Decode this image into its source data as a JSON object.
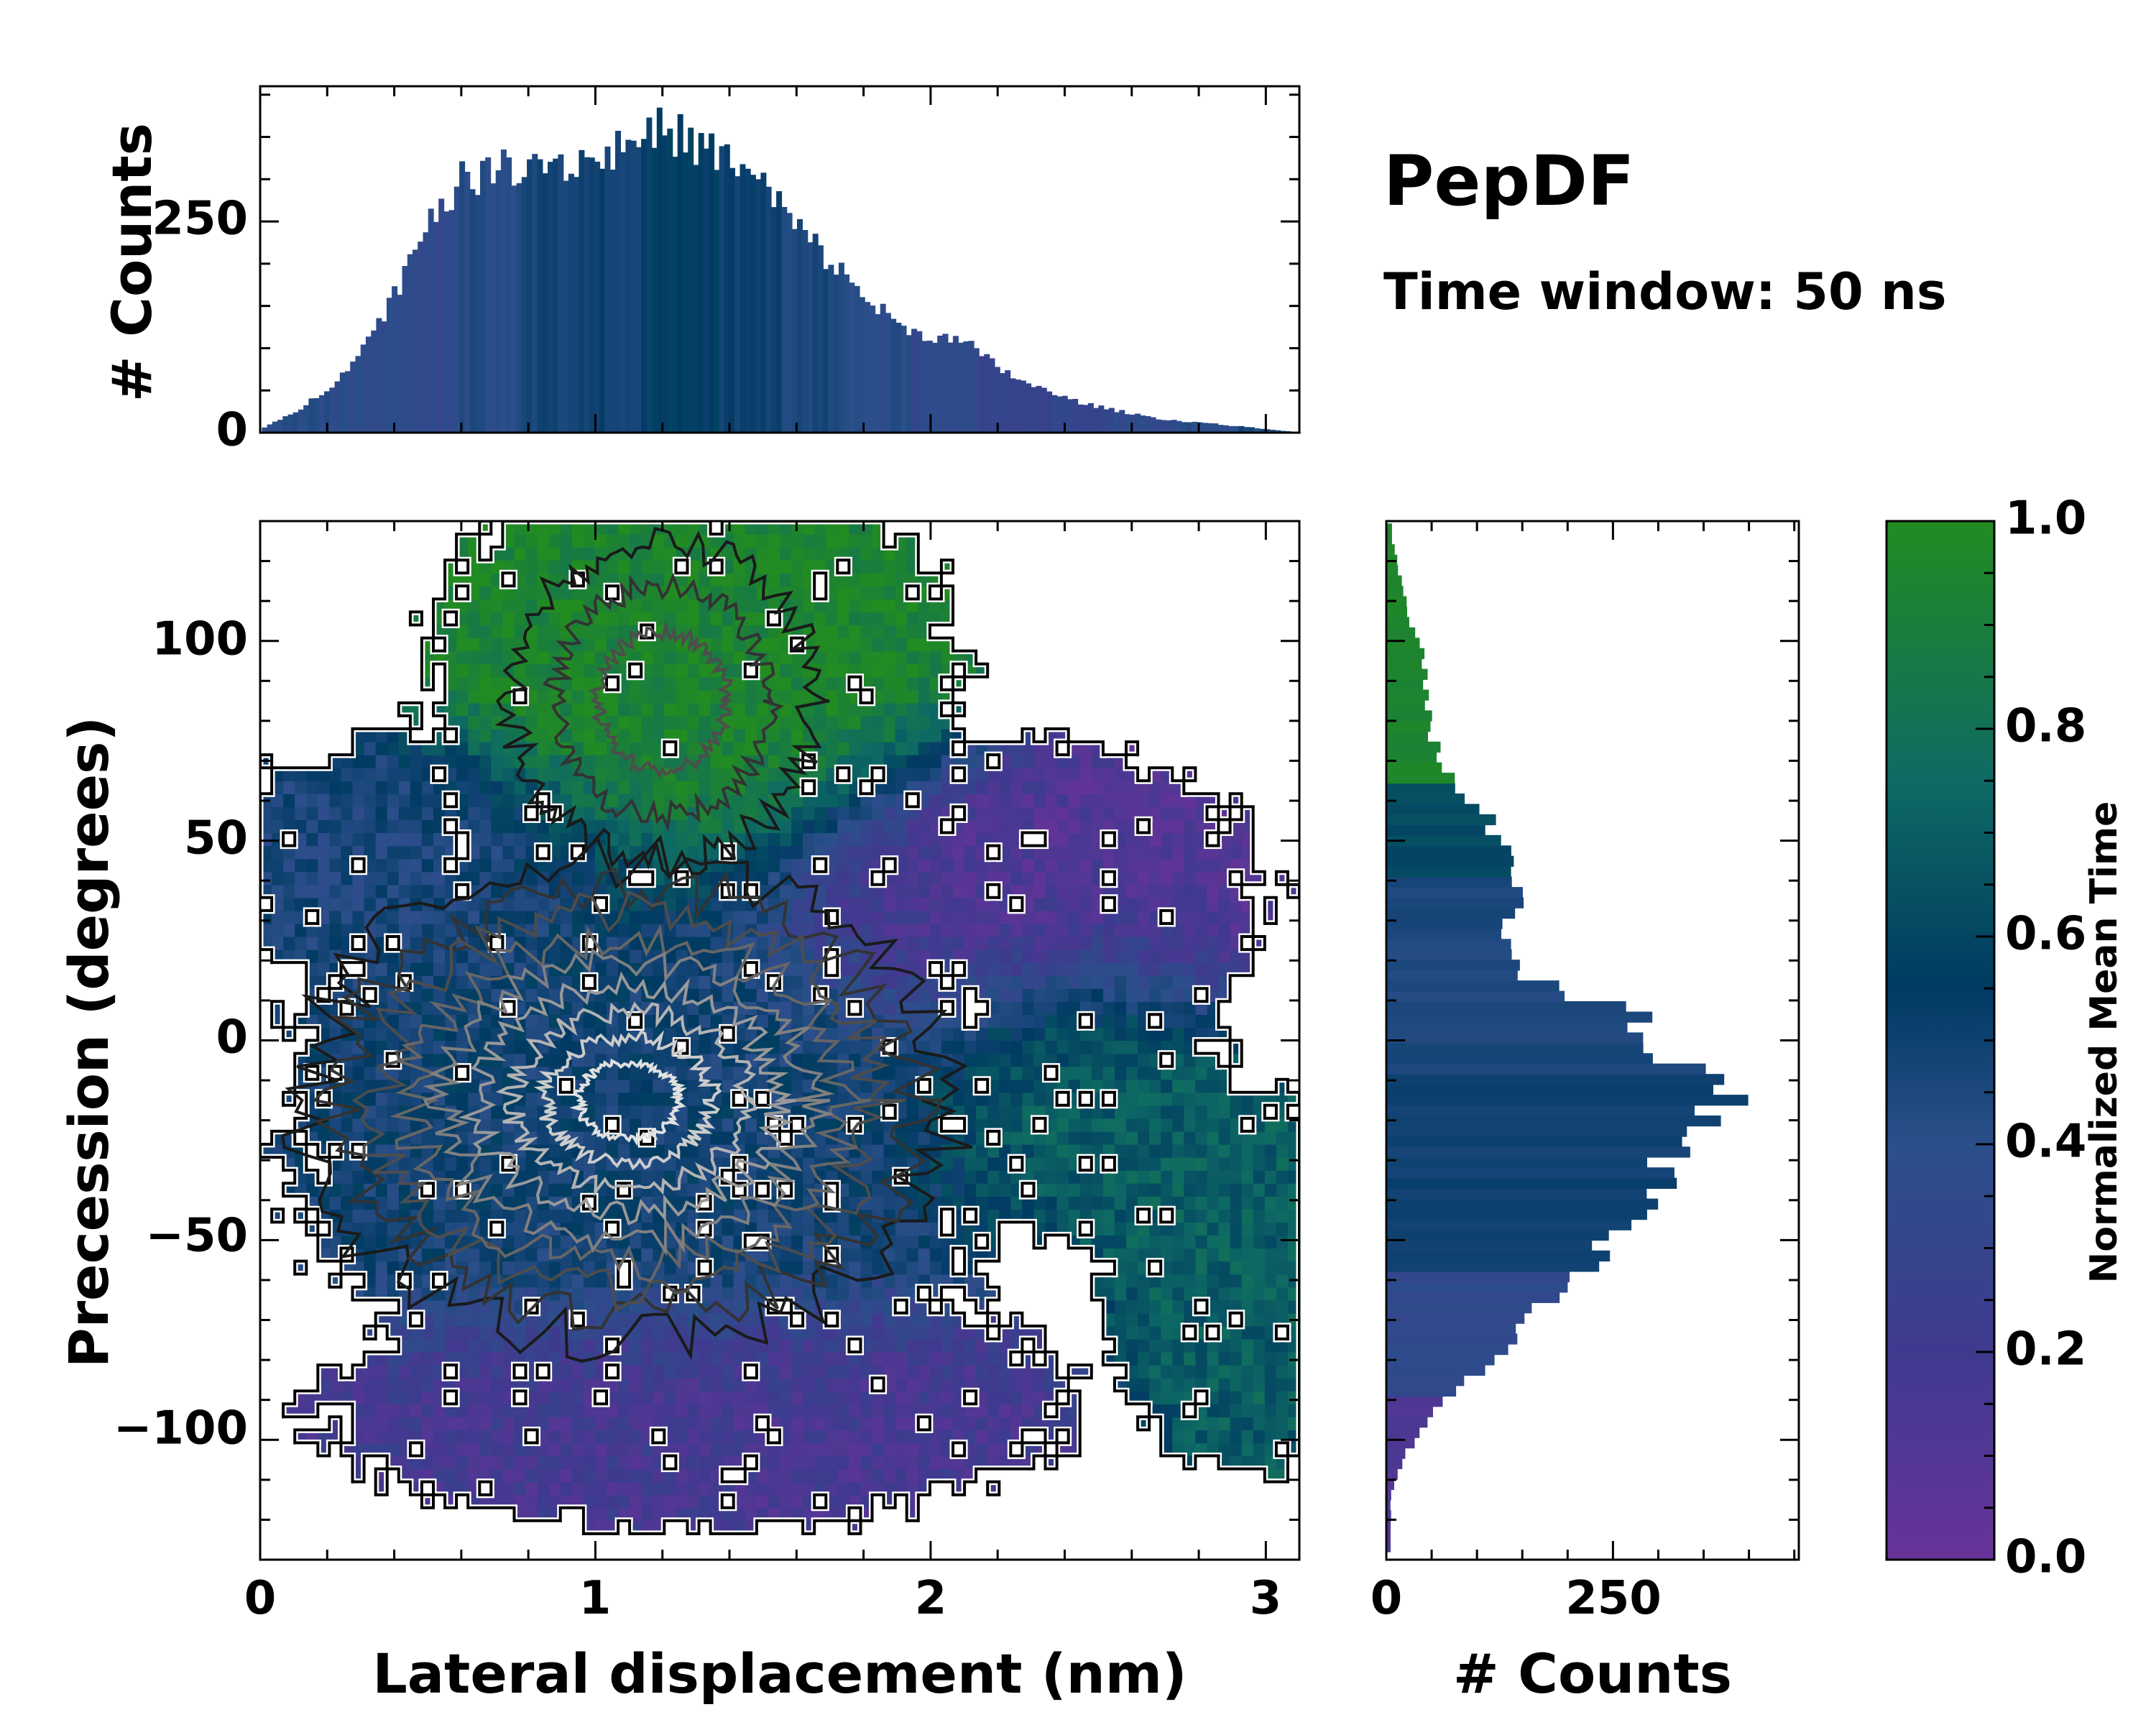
{
  "chart_data": {
    "type": "heatmap",
    "annotation": {
      "title": "PepDF",
      "subtitle": "Time window: 50 ns"
    },
    "main": {
      "xlabel": "Lateral displacement (nm)",
      "ylabel": "Precession (degrees)",
      "xlim": [
        0,
        3.1
      ],
      "ylim": [
        -130,
        130
      ],
      "xticks": [
        "0",
        "1",
        "2",
        "3"
      ],
      "xtick_values": [
        0,
        1,
        2,
        3
      ],
      "yticks": [
        "−100",
        "−50",
        "0",
        "50",
        "100"
      ],
      "ytick_values": [
        -100,
        -50,
        0,
        50,
        100
      ],
      "colorbar": {
        "label": "Normalized Mean Time",
        "ticks": [
          "0.0",
          "0.2",
          "0.4",
          "0.6",
          "0.8",
          "1.0"
        ],
        "tick_values": [
          0.0,
          0.2,
          0.4,
          0.6,
          0.8,
          1.0
        ],
        "colors": [
          "#673399",
          "#3f3a8f",
          "#2b4f8a",
          "#003a62",
          "#0e6a63",
          "#228b22"
        ]
      },
      "regions": [
        {
          "name": "upper cluster",
          "x_center": 1.3,
          "y_center": 90,
          "x_spread": 0.5,
          "y_spread": 35,
          "mean_time": 0.95
        },
        {
          "name": "left mid band",
          "x_center": 0.5,
          "y_center": 45,
          "x_spread": 0.4,
          "y_spread": 20,
          "mean_time": 0.45
        },
        {
          "name": "central core",
          "x_center": 1.2,
          "y_center": -20,
          "x_spread": 0.7,
          "y_spread": 45,
          "mean_time": 0.5
        },
        {
          "name": "right purple lobe",
          "x_center": 2.2,
          "y_center": 35,
          "x_spread": 0.5,
          "y_spread": 25,
          "mean_time": 0.1
        },
        {
          "name": "right teal lobe",
          "x_center": 2.4,
          "y_center": -10,
          "x_spread": 0.3,
          "y_spread": 25,
          "mean_time": 0.7
        },
        {
          "name": "far right teal",
          "x_center": 2.9,
          "y_center": -60,
          "x_spread": 0.25,
          "y_spread": 30,
          "mean_time": 0.7
        },
        {
          "name": "lower purple",
          "x_center": 1.3,
          "y_center": -90,
          "x_spread": 0.7,
          "y_spread": 20,
          "mean_time": 0.15
        }
      ]
    },
    "top_histogram": {
      "ylabel": "# Counts",
      "ylim": [
        0,
        410
      ],
      "yticks": [
        "0",
        "250"
      ],
      "ytick_values": [
        0,
        250
      ],
      "bin_width_nm": 0.0155,
      "x": [
        0.0,
        0.1,
        0.2,
        0.3,
        0.4,
        0.5,
        0.6,
        0.7,
        0.8,
        0.9,
        1.0,
        1.1,
        1.2,
        1.3,
        1.4,
        1.5,
        1.6,
        1.7,
        1.8,
        1.9,
        2.0,
        2.1,
        2.2,
        2.3,
        2.4,
        2.5,
        2.6,
        2.7,
        2.8,
        2.9,
        3.0,
        3.1
      ],
      "counts": [
        5,
        25,
        55,
        100,
        170,
        260,
        300,
        310,
        325,
        320,
        325,
        345,
        360,
        340,
        320,
        290,
        240,
        200,
        160,
        125,
        115,
        105,
        75,
        55,
        40,
        30,
        22,
        15,
        12,
        8,
        4,
        0
      ],
      "bar_colors": [
        "#2b4f8a",
        "#3f3a8f",
        "#2b4f8a",
        "#003a62",
        "#0e6a63",
        "#003a62",
        "#3f3a8f",
        "#2b4f8a"
      ]
    },
    "right_histogram": {
      "xlabel": "# Counts",
      "xlim": [
        0,
        455
      ],
      "xticks": [
        "0",
        "250"
      ],
      "xtick_values": [
        0,
        250
      ],
      "y": [
        125,
        115,
        105,
        95,
        85,
        75,
        65,
        55,
        45,
        35,
        25,
        15,
        5,
        -5,
        -15,
        -25,
        -35,
        -45,
        -55,
        -65,
        -75,
        -85,
        -95,
        -105,
        -115
      ],
      "counts": [
        6,
        15,
        25,
        40,
        45,
        50,
        70,
        110,
        135,
        160,
        130,
        150,
        270,
        310,
        400,
        320,
        300,
        270,
        230,
        185,
        140,
        95,
        50,
        20,
        5
      ],
      "bar_colors": [
        {
          "from": 130,
          "to": 62,
          "value": 0.95
        },
        {
          "from": 62,
          "to": 40,
          "value": 0.62
        },
        {
          "from": 40,
          "to": -10,
          "value": 0.45
        },
        {
          "from": -10,
          "to": -60,
          "value": 0.5
        },
        {
          "from": -60,
          "to": -90,
          "value": 0.35
        },
        {
          "from": -90,
          "to": -130,
          "value": 0.12
        }
      ]
    }
  }
}
